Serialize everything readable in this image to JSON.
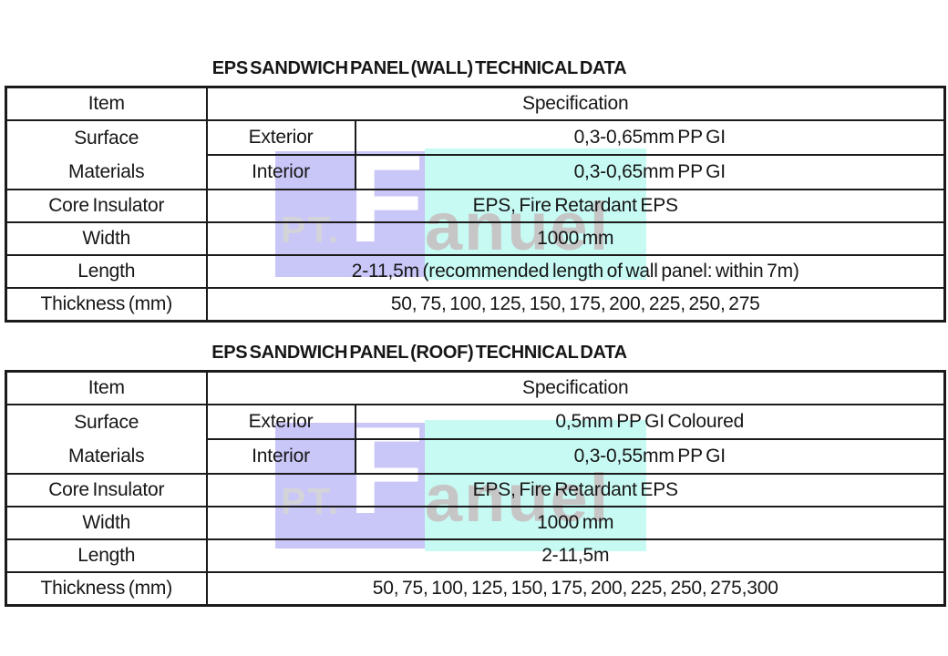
{
  "watermark": {
    "prefix": "PT.",
    "letter_f": "F",
    "suffix": "anuel",
    "purple_color": "#c9c6f8",
    "cyan_color": "#c7faf3",
    "f_color": "#ffffff",
    "gray_color": "#c6c6c6"
  },
  "tables": [
    {
      "title": "EPS SANDWICH PANEL (WALL) TECHNICAL DATA",
      "header": {
        "item": "Item",
        "spec": "Specification"
      },
      "surface": {
        "label_line1": "Surface",
        "label_line2": "Materials",
        "exterior_label": "Exterior",
        "exterior_value": "0,3-0,65mm PP GI",
        "interior_label": "Interior",
        "interior_value": "0,3-0,65mm PP GI"
      },
      "rows": [
        {
          "label": "Core Insulator",
          "value": "EPS, Fire Retardant EPS"
        },
        {
          "label": "Width",
          "value": "1000 mm"
        },
        {
          "label": "Length",
          "value": "2-11,5m (recommended length of wall panel: within 7m)"
        },
        {
          "label": "Thickness (mm)",
          "value": "50, 75, 100, 125, 150, 175, 200, 225, 250, 275"
        }
      ]
    },
    {
      "title": "EPS SANDWICH PANEL (ROOF) TECHNICAL DATA",
      "header": {
        "item": "Item",
        "spec": "Specification"
      },
      "surface": {
        "label_line1": "Surface",
        "label_line2": "Materials",
        "exterior_label": "Exterior",
        "exterior_value": "0,5mm PP GI Coloured",
        "interior_label": "Interior",
        "interior_value": "0,3-0,55mm PP GI"
      },
      "rows": [
        {
          "label": "Core Insulator",
          "value": "EPS, Fire Retardant EPS"
        },
        {
          "label": "Width",
          "value": "1000 mm"
        },
        {
          "label": "Length",
          "value": "2-11,5m"
        },
        {
          "label": "Thickness (mm)",
          "value": "50, 75, 100, 125, 150, 175, 200, 225, 250, 275,300"
        }
      ]
    }
  ]
}
